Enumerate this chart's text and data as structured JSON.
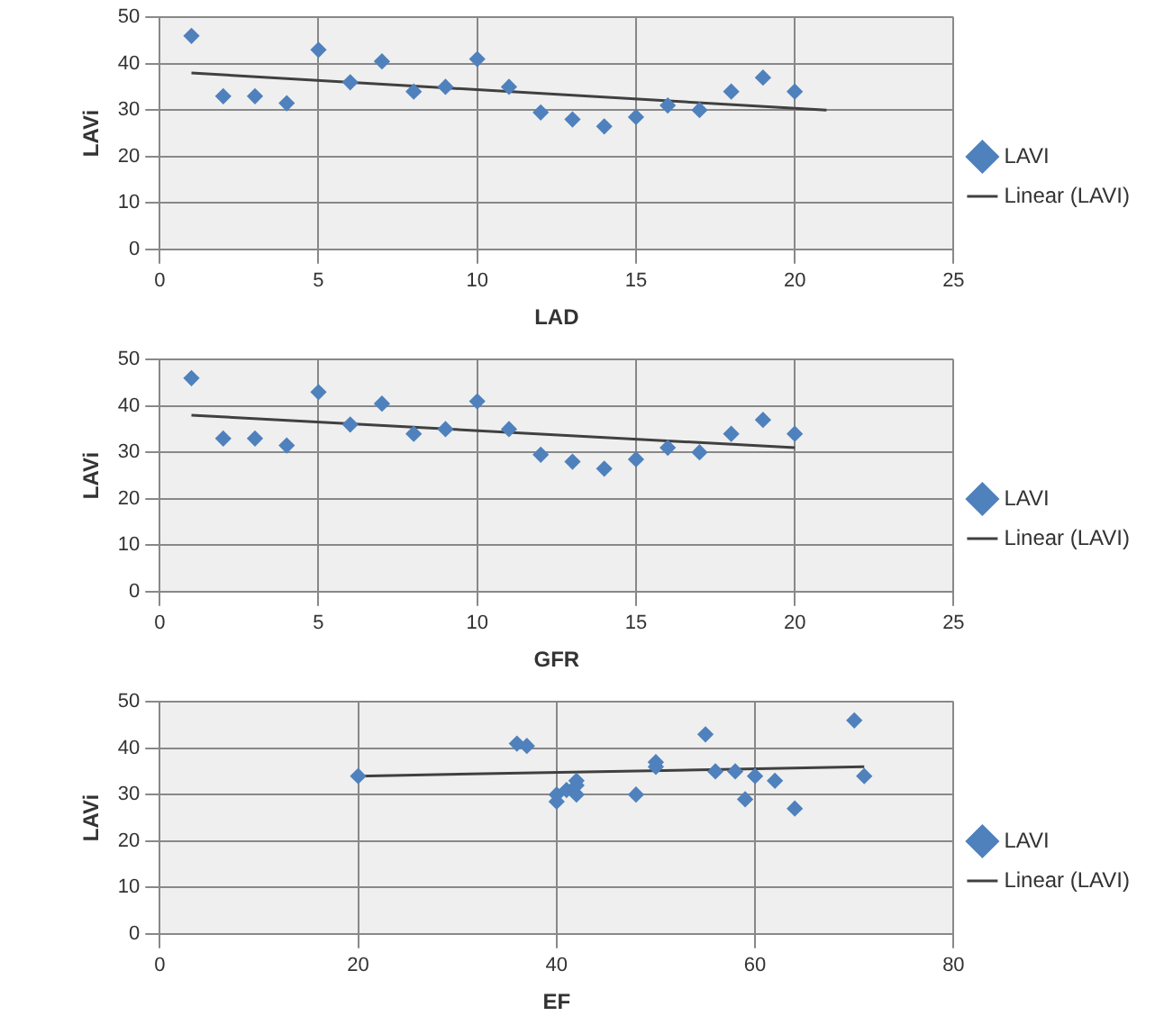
{
  "chart_data": [
    {
      "type": "scatter",
      "xlabel": "LAD",
      "ylabel": "LAVi",
      "xlim": [
        0,
        25
      ],
      "xticks": [
        0,
        5,
        10,
        15,
        20,
        25
      ],
      "ylim": [
        0,
        50
      ],
      "yticks": [
        0,
        10,
        20,
        30,
        40,
        50
      ],
      "grid": true,
      "legend": "right",
      "marker": "diamond",
      "series": [
        {
          "name": "LAVI",
          "color": "#4f81bd",
          "x": [
            1,
            2,
            3,
            4,
            5,
            6,
            7,
            8,
            9,
            10,
            11,
            12,
            13,
            14,
            15,
            16,
            17,
            18,
            19,
            20
          ],
          "values": [
            46,
            33,
            33,
            31.5,
            43,
            36,
            40.5,
            34,
            35,
            41,
            35,
            29.5,
            28,
            26.5,
            28.5,
            31,
            30,
            34,
            37,
            34
          ]
        },
        {
          "name": "Linear (LAVI)",
          "type": "line",
          "marker": "none",
          "color": "#404040",
          "x": [
            1,
            21
          ],
          "values": [
            38,
            30
          ]
        }
      ]
    },
    {
      "type": "scatter",
      "xlabel": "GFR",
      "ylabel": "LAVi",
      "xlim": [
        0,
        25
      ],
      "xticks": [
        0,
        5,
        10,
        15,
        20,
        25
      ],
      "ylim": [
        0,
        50
      ],
      "yticks": [
        0,
        10,
        20,
        30,
        40,
        50
      ],
      "grid": true,
      "legend": "right",
      "marker": "diamond",
      "series": [
        {
          "name": "LAVI",
          "color": "#4f81bd",
          "x": [
            1,
            2,
            3,
            4,
            5,
            6,
            7,
            8,
            9,
            10,
            11,
            12,
            13,
            14,
            15,
            16,
            17,
            18,
            19,
            20
          ],
          "values": [
            46,
            33,
            33,
            31.5,
            43,
            36,
            40.5,
            34,
            35,
            41,
            35,
            29.5,
            28,
            26.5,
            28.5,
            31,
            30,
            34,
            37,
            34
          ]
        },
        {
          "name": "Linear (LAVI)",
          "type": "line",
          "marker": "none",
          "color": "#404040",
          "x": [
            1,
            20
          ],
          "values": [
            38,
            31
          ]
        }
      ]
    },
    {
      "type": "scatter",
      "xlabel": "EF",
      "ylabel": "LAVi",
      "xlim": [
        0,
        80
      ],
      "xticks": [
        0,
        20,
        40,
        60,
        80
      ],
      "ylim": [
        0,
        50
      ],
      "yticks": [
        0,
        10,
        20,
        30,
        40,
        50
      ],
      "grid": true,
      "legend": "right",
      "marker": "diamond",
      "series": [
        {
          "name": "LAVI",
          "color": "#4f81bd",
          "x": [
            20,
            36,
            37,
            40,
            40,
            41,
            42,
            42,
            42,
            48,
            50,
            50,
            55,
            56,
            58,
            59,
            60,
            62,
            64,
            70,
            71
          ],
          "values": [
            34,
            41,
            40.5,
            28.5,
            30,
            31,
            33,
            30,
            32,
            30,
            37,
            36,
            43,
            35,
            35,
            29,
            34,
            33,
            27,
            46,
            34
          ]
        },
        {
          "name": "Linear (LAVI)",
          "type": "line",
          "marker": "none",
          "color": "#404040",
          "x": [
            20,
            71
          ],
          "values": [
            34,
            36
          ]
        }
      ]
    }
  ]
}
